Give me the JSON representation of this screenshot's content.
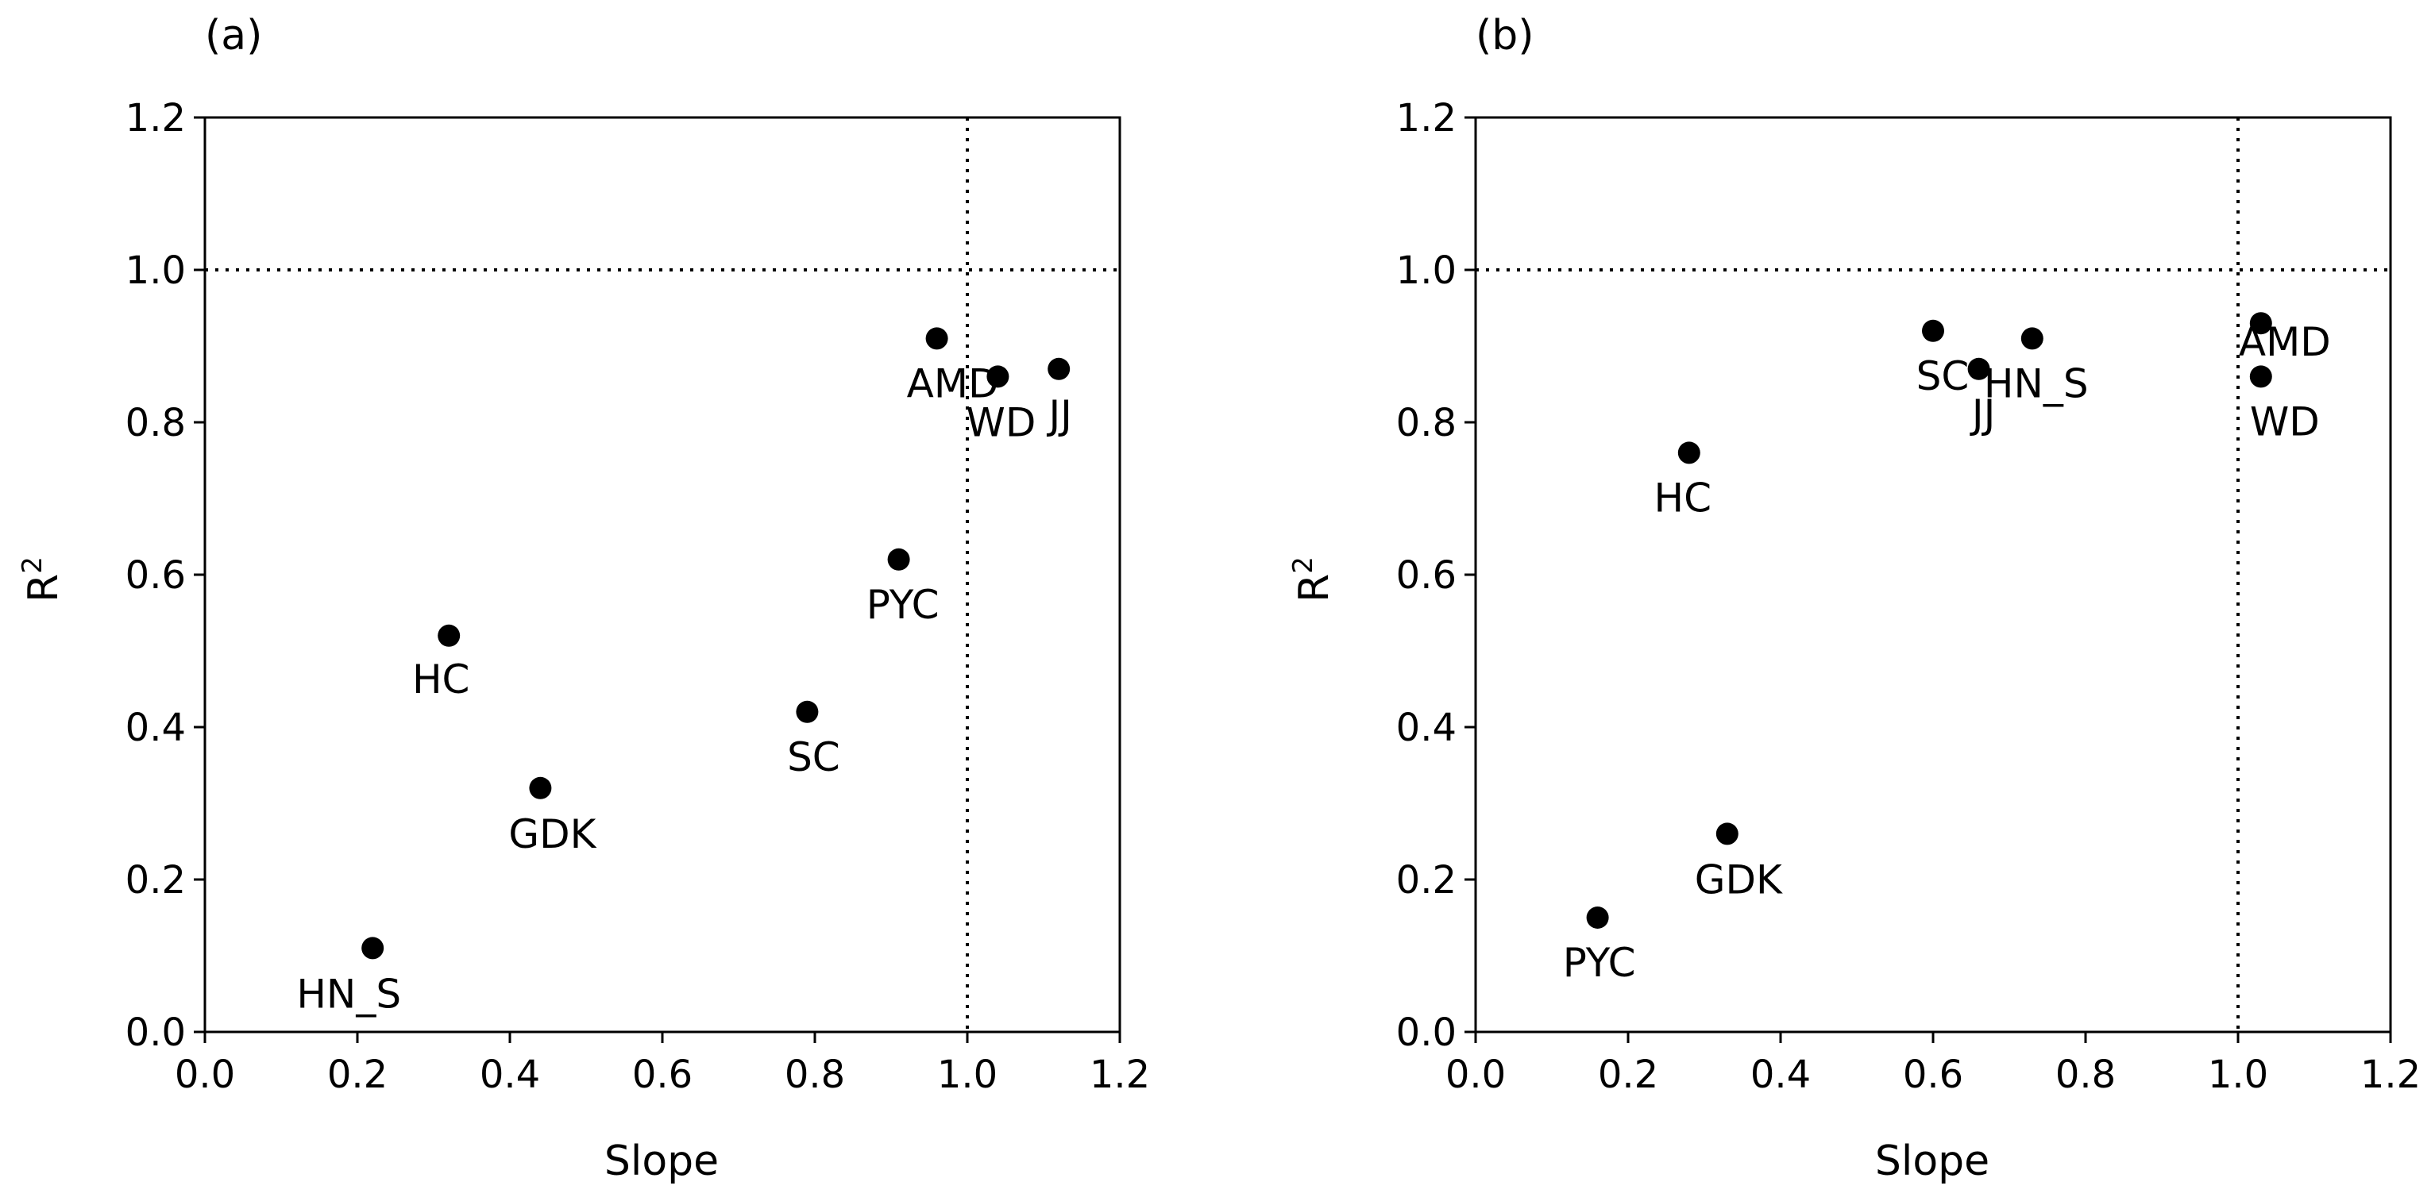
{
  "colors": {
    "marker": "#000000",
    "axis": "#000000",
    "reference_line": "#000000",
    "background": "#ffffff"
  },
  "chart_data": [
    {
      "panel_label": "(a)",
      "type": "scatter",
      "xlabel": "Slope",
      "ylabel": "R",
      "ylabel_superscript": "2",
      "xlim": [
        0.0,
        1.2
      ],
      "ylim": [
        0.0,
        1.2
      ],
      "xticks": [
        "0.0",
        "0.2",
        "0.4",
        "0.6",
        "0.8",
        "1.0",
        "1.2"
      ],
      "yticks": [
        "0.0",
        "0.2",
        "0.4",
        "0.6",
        "0.8",
        "1.0",
        "1.2"
      ],
      "reference_lines": {
        "x": 1.0,
        "y": 1.0,
        "style": "dotted"
      },
      "points": [
        {
          "label": "HN_S",
          "x": 0.22,
          "y": 0.11
        },
        {
          "label": "HC",
          "x": 0.32,
          "y": 0.52
        },
        {
          "label": "GDK",
          "x": 0.44,
          "y": 0.32
        },
        {
          "label": "SC",
          "x": 0.79,
          "y": 0.42
        },
        {
          "label": "PYC",
          "x": 0.91,
          "y": 0.62
        },
        {
          "label": "AMD",
          "x": 0.96,
          "y": 0.91
        },
        {
          "label": "WD",
          "x": 1.04,
          "y": 0.86
        },
        {
          "label": "JJ",
          "x": 1.12,
          "y": 0.87
        }
      ]
    },
    {
      "panel_label": "(b)",
      "type": "scatter",
      "xlabel": "Slope",
      "ylabel": "R",
      "ylabel_superscript": "2",
      "xlim": [
        0.0,
        1.2
      ],
      "ylim": [
        0.0,
        1.2
      ],
      "xticks": [
        "0.0",
        "0.2",
        "0.4",
        "0.6",
        "0.8",
        "1.0",
        "1.2"
      ],
      "yticks": [
        "0.0",
        "0.2",
        "0.4",
        "0.6",
        "0.8",
        "1.0",
        "1.2"
      ],
      "reference_lines": {
        "x": 1.0,
        "y": 1.0,
        "style": "dotted"
      },
      "points": [
        {
          "label": "PYC",
          "x": 0.16,
          "y": 0.15
        },
        {
          "label": "HC",
          "x": 0.28,
          "y": 0.76
        },
        {
          "label": "GDK",
          "x": 0.33,
          "y": 0.26
        },
        {
          "label": "SC",
          "x": 0.6,
          "y": 0.92
        },
        {
          "label": "JJ",
          "x": 0.66,
          "y": 0.87
        },
        {
          "label": "HN_S",
          "x": 0.73,
          "y": 0.91
        },
        {
          "label": "AMD",
          "x": 1.03,
          "y": 0.93
        },
        {
          "label": "WD",
          "x": 1.03,
          "y": 0.86
        }
      ]
    }
  ]
}
